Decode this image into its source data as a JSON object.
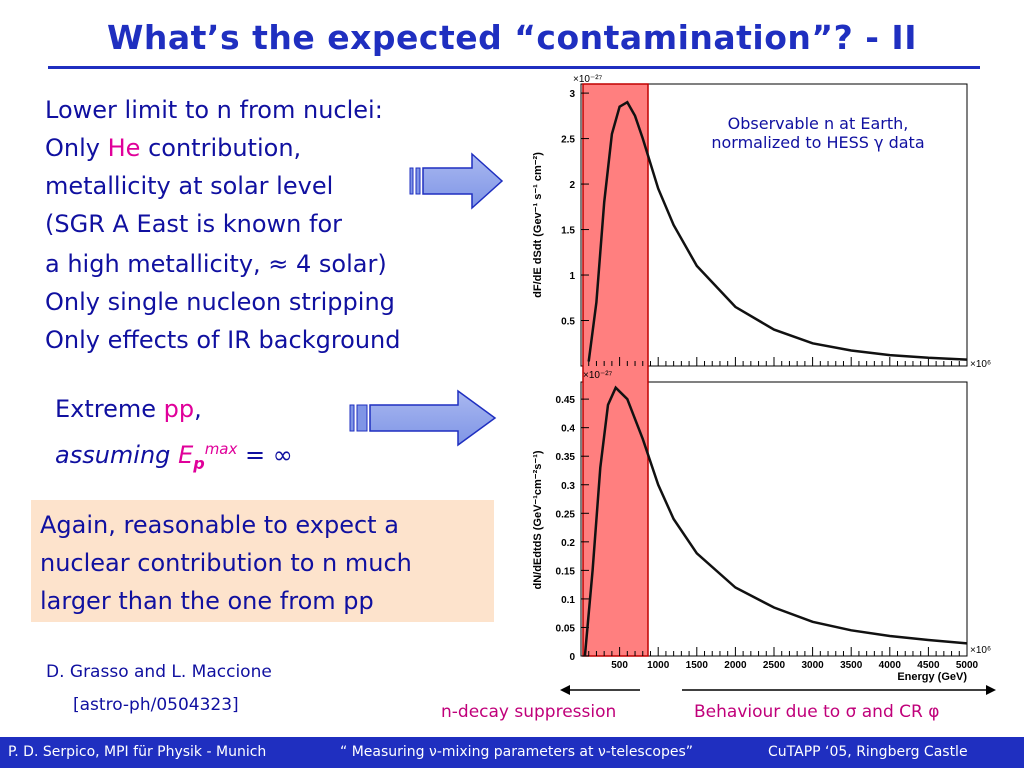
{
  "title": "What’s the expected “contamination”? - II",
  "left_block": {
    "lines": [
      "Lower limit to n from nuclei:",
      "Only",
      "He",
      "contribution,",
      "metallicity at solar level",
      "(SGR A East is known for",
      "a high metallicity, ≈ 4 solar)",
      "Only single nucleon stripping",
      "Only effects of IR background"
    ]
  },
  "pp_block": {
    "line1_a": "Extreme",
    "line1_b": "pp",
    "line1_c": ",",
    "line2_a": "assuming",
    "line2_E": "E",
    "line2_sub": "p",
    "line2_sup": "max",
    "line2_eq": "= ∞"
  },
  "box": {
    "lines": [
      "Again, reasonable to expect a",
      "nuclear contribution to n much",
      "larger than the one from pp"
    ]
  },
  "reference": {
    "authors": "D. Grasso and L. Maccione",
    "arxiv": "[astro-ph/0504323]"
  },
  "plot_labels": {
    "top_exp": "×10⁻²⁷",
    "bottom_exp": "×10⁻²⁷",
    "xexp_top": "×10⁶",
    "xexp_bottom": "×10⁶",
    "xlabel": "Energy (GeV)",
    "ylabel_top": "dF/dE dSdt (Gev⁻¹ s⁻¹ cm⁻²)",
    "ylabel_bottom": "dN/dEdtdS (GeV⁻¹cm⁻²s⁻¹)",
    "legend_line1": "Observable n at Earth,",
    "legend_line2": "normalized to HESS γ data"
  },
  "chart_data": [
    {
      "type": "line",
      "title": "",
      "ylabel": "dF/dE dSdt (Gev⁻¹ s⁻¹ cm⁻²)",
      "xlabel": "",
      "ylim": [
        0,
        3.1
      ],
      "y_ticks": [
        0.5,
        1,
        1.5,
        2,
        2.5,
        3
      ],
      "series": [
        {
          "x": [
            100,
            200,
            300,
            400,
            500,
            600,
            700,
            800,
            1000,
            1200,
            1500,
            2000,
            2500,
            3000,
            3500,
            4000,
            4500,
            5000
          ],
          "y": [
            0.05,
            0.7,
            1.8,
            2.55,
            2.85,
            2.9,
            2.75,
            2.5,
            1.95,
            1.55,
            1.1,
            0.65,
            0.4,
            0.25,
            0.17,
            0.12,
            0.09,
            0.07
          ]
        }
      ]
    },
    {
      "type": "line",
      "title": "",
      "ylabel": "dN/dEdtdS (GeV⁻¹cm⁻²s⁻¹)",
      "xlabel": "Energy (GeV)",
      "xlim": [
        0,
        5000
      ],
      "ylim": [
        0,
        0.48
      ],
      "x_ticks": [
        500,
        1000,
        1500,
        2000,
        2500,
        3000,
        3500,
        4000,
        4500,
        5000
      ],
      "y_ticks": [
        0,
        0.05,
        0.1,
        0.15,
        0.2,
        0.25,
        0.3,
        0.35,
        0.4,
        0.45
      ],
      "series": [
        {
          "x": [
            50,
            150,
            250,
            350,
            450,
            600,
            800,
            1000,
            1200,
            1500,
            2000,
            2500,
            3000,
            3500,
            4000,
            4500,
            5000
          ],
          "y": [
            0.0,
            0.15,
            0.33,
            0.44,
            0.47,
            0.45,
            0.38,
            0.3,
            0.24,
            0.18,
            0.12,
            0.085,
            0.06,
            0.045,
            0.035,
            0.028,
            0.022
          ]
        }
      ]
    }
  ],
  "captions": {
    "left": "n-decay suppression",
    "right_a": "Behaviour due to",
    "right_sigma": "σ",
    "right_and": "and CR",
    "right_phi": "φ"
  },
  "footer": {
    "author": "P. D. Serpico,  MPI für Physik - Munich",
    "talk": "“ Measuring ν-mixing parameters at ν-telescopes”",
    "conf": "CuTAPP ‘05, Ringberg Castle"
  }
}
